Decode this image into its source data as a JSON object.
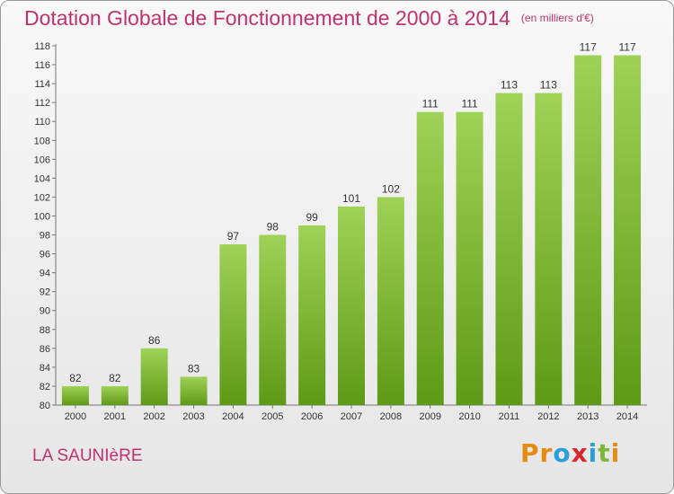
{
  "title": "Dotation Globale de Fonctionnement de 2000 à 2014",
  "unit": "(en milliers d'€)",
  "commune": "LA SAUNIèRE",
  "logo": {
    "letters": [
      "P",
      "r",
      "o",
      "x",
      "i",
      "t",
      "i"
    ],
    "colors": [
      "#e58b12",
      "#e58b12",
      "#2a9fd8",
      "#d8282f",
      "#2a9fd8",
      "#7cb83a",
      "#e58b12"
    ]
  },
  "colors": {
    "bar_light": "#9fd257",
    "bar_dark": "#5e9a16",
    "title": "#c0326e"
  },
  "chart_data": {
    "type": "bar",
    "categories": [
      "2000",
      "2001",
      "2002",
      "2003",
      "2004",
      "2005",
      "2006",
      "2007",
      "2008",
      "2009",
      "2010",
      "2011",
      "2012",
      "2013",
      "2014"
    ],
    "values": [
      82,
      82,
      86,
      83,
      97,
      98,
      99,
      101,
      102,
      111,
      111,
      113,
      113,
      117,
      117
    ],
    "ylim": [
      80,
      118
    ],
    "yticks": [
      80,
      82,
      84,
      86,
      88,
      90,
      92,
      94,
      96,
      98,
      100,
      102,
      104,
      106,
      108,
      110,
      112,
      114,
      116,
      118
    ],
    "grid": false,
    "legend": "none"
  }
}
